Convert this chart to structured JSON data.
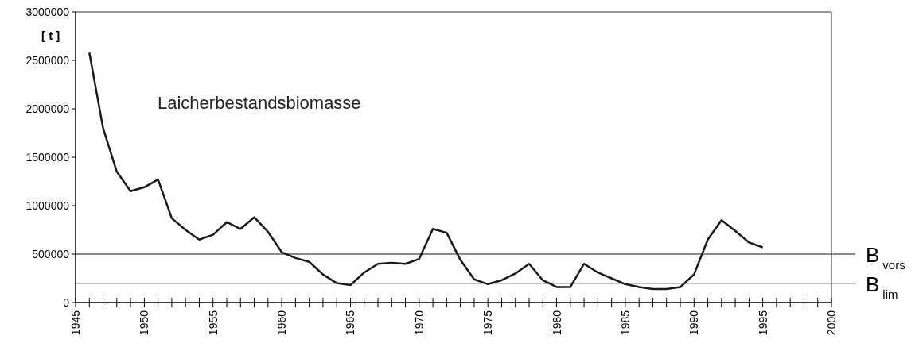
{
  "chart_data": {
    "type": "line",
    "ylabel": "[ t ]",
    "x": [
      1946,
      1947,
      1948,
      1949,
      1950,
      1951,
      1952,
      1953,
      1954,
      1955,
      1956,
      1957,
      1958,
      1959,
      1960,
      1961,
      1962,
      1963,
      1964,
      1965,
      1966,
      1967,
      1968,
      1969,
      1970,
      1971,
      1972,
      1973,
      1974,
      1975,
      1976,
      1977,
      1978,
      1979,
      1980,
      1981,
      1982,
      1983,
      1984,
      1985,
      1986,
      1987,
      1988,
      1989,
      1990,
      1991,
      1992,
      1993,
      1994,
      1995
    ],
    "annotations": [
      "Laicherbestandsbiomasse"
    ],
    "series": [
      {
        "color": "#1a1a1a",
        "values": [
          2580000,
          1800000,
          1350000,
          1150000,
          1190000,
          1270000,
          870000,
          750000,
          650000,
          700000,
          830000,
          760000,
          880000,
          730000,
          520000,
          460000,
          420000,
          290000,
          200000,
          180000,
          310000,
          400000,
          410000,
          400000,
          450000,
          760000,
          720000,
          440000,
          240000,
          190000,
          230000,
          300000,
          400000,
          230000,
          160000,
          160000,
          400000,
          310000,
          250000,
          190000,
          160000,
          140000,
          140000,
          160000,
          290000,
          650000,
          850000,
          740000,
          620000,
          570000
        ]
      }
    ],
    "xlim": [
      1945,
      2000
    ],
    "xticks": [
      1945,
      {
        "value": 1946,
        "label": null
      },
      {
        "value": 1947,
        "label": null
      },
      {
        "value": 1948,
        "label": null
      },
      {
        "value": 1949,
        "label": null
      },
      1950,
      {
        "value": 1951,
        "label": null
      },
      {
        "value": 1952,
        "label": null
      },
      {
        "value": 1953,
        "label": null
      },
      {
        "value": 1954,
        "label": null
      },
      1955,
      {
        "value": 1956,
        "label": null
      },
      {
        "value": 1957,
        "label": null
      },
      {
        "value": 1958,
        "label": null
      },
      {
        "value": 1959,
        "label": null
      },
      1960,
      {
        "value": 1961,
        "label": null
      },
      {
        "value": 1962,
        "label": null
      },
      {
        "value": 1963,
        "label": null
      },
      {
        "value": 1964,
        "label": null
      },
      1965,
      {
        "value": 1966,
        "label": null
      },
      {
        "value": 1967,
        "label": null
      },
      {
        "value": 1968,
        "label": null
      },
      {
        "value": 1969,
        "label": null
      },
      1970,
      {
        "value": 1971,
        "label": null
      },
      {
        "value": 1972,
        "label": null
      },
      {
        "value": 1973,
        "label": null
      },
      {
        "value": 1974,
        "label": null
      },
      1975,
      {
        "value": 1976,
        "label": null
      },
      {
        "value": 1977,
        "label": null
      },
      {
        "value": 1978,
        "label": null
      },
      {
        "value": 1979,
        "label": null
      },
      1980,
      {
        "value": 1981,
        "label": null
      },
      {
        "value": 1982,
        "label": null
      },
      {
        "value": 1983,
        "label": null
      },
      {
        "value": 1984,
        "label": null
      },
      1985,
      {
        "value": 1986,
        "label": null
      },
      {
        "value": 1987,
        "label": null
      },
      {
        "value": 1988,
        "label": null
      },
      {
        "value": 1989,
        "label": null
      },
      1990,
      {
        "value": 1991,
        "label": null
      },
      {
        "value": 1992,
        "label": null
      },
      {
        "value": 1993,
        "label": null
      },
      {
        "value": 1994,
        "label": null
      },
      1995,
      {
        "value": 1996,
        "label": null
      },
      {
        "value": 1997,
        "label": null
      },
      {
        "value": 1998,
        "label": null
      },
      {
        "value": 1999,
        "label": null
      },
      2000
    ],
    "ylim": [
      0,
      3000000
    ],
    "yticks": [
      0,
      500000,
      1000000,
      1500000,
      2000000,
      2500000,
      3000000
    ],
    "ref_lines": [
      {
        "axis": "y",
        "value": 500000,
        "label": "B$_{vors}$",
        "color": "#1a1a1a"
      },
      {
        "axis": "y",
        "value": 200000,
        "label": "B$_{lim}$",
        "color": "#1a1a1a"
      }
    ],
    "grid": false,
    "marker": "none",
    "line_style": "solid"
  }
}
